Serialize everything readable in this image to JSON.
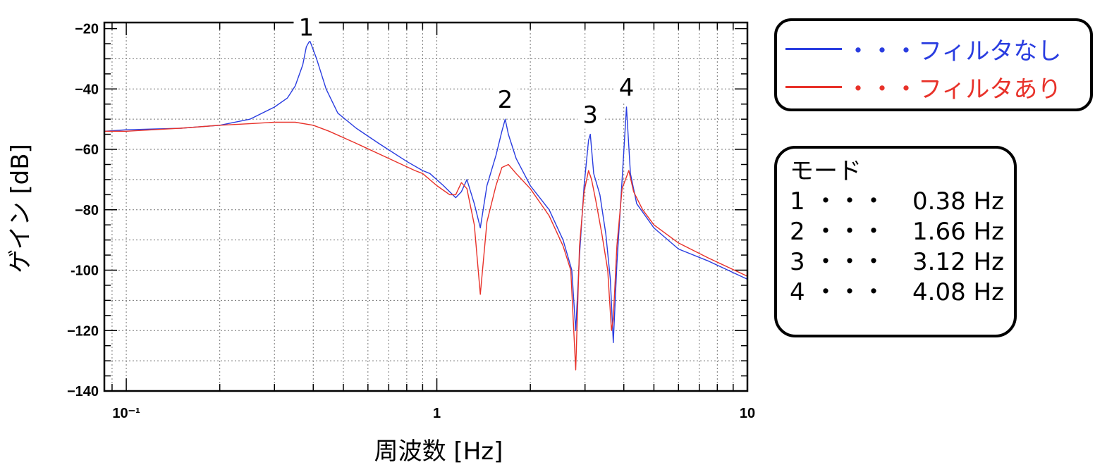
{
  "chart_data": {
    "type": "line",
    "title": "",
    "xlabel": "周波数 [Hz]",
    "ylabel": "ゲイン [dB]",
    "xscale": "log",
    "xlim": [
      0.085,
      10
    ],
    "ylim": [
      -140,
      -18
    ],
    "xticks": [
      {
        "value": 0.1,
        "label": "10⁻¹"
      },
      {
        "value": 1,
        "label": "1"
      },
      {
        "value": 10,
        "label": "10"
      }
    ],
    "yticks": [
      {
        "value": -20,
        "label": "−20"
      },
      {
        "value": -40,
        "label": "−40"
      },
      {
        "value": -60,
        "label": "−60"
      },
      {
        "value": -80,
        "label": "−80"
      },
      {
        "value": -100,
        "label": "-100"
      },
      {
        "value": -120,
        "label": "−120"
      },
      {
        "value": -140,
        "label": "−140"
      }
    ],
    "grid": true,
    "series": [
      {
        "name": "フィルタなし",
        "color": "#2a3de0",
        "x": [
          0.085,
          0.1,
          0.15,
          0.2,
          0.25,
          0.3,
          0.33,
          0.35,
          0.37,
          0.38,
          0.39,
          0.41,
          0.44,
          0.48,
          0.55,
          0.65,
          0.8,
          0.9,
          0.95,
          1.05,
          1.15,
          1.2,
          1.25,
          1.32,
          1.38,
          1.45,
          1.55,
          1.62,
          1.66,
          1.7,
          1.8,
          2.0,
          2.3,
          2.55,
          2.72,
          2.8,
          2.88,
          2.98,
          3.08,
          3.12,
          3.2,
          3.35,
          3.5,
          3.62,
          3.7,
          3.8,
          3.95,
          4.08,
          4.2,
          4.4,
          5.0,
          6.0,
          7.5,
          10
        ],
        "y": [
          -54,
          -53.5,
          -53,
          -52,
          -50,
          -46,
          -43,
          -39,
          -32,
          -26,
          -24,
          -30,
          -40,
          -48,
          -53,
          -58,
          -64,
          -67,
          -68,
          -72,
          -76,
          -74,
          -70,
          -78,
          -86,
          -72,
          -62,
          -54,
          -50,
          -55,
          -63,
          -72,
          -80,
          -90,
          -100,
          -120,
          -95,
          -72,
          -57,
          -55,
          -68,
          -75,
          -88,
          -103,
          -124,
          -98,
          -70,
          -46,
          -68,
          -78,
          -86,
          -93,
          -97,
          -103
        ]
      },
      {
        "name": "フィルタあり",
        "color": "#e8322a",
        "x": [
          0.085,
          0.1,
          0.15,
          0.2,
          0.25,
          0.3,
          0.35,
          0.4,
          0.45,
          0.55,
          0.7,
          0.85,
          0.9,
          1.0,
          1.1,
          1.15,
          1.2,
          1.25,
          1.32,
          1.38,
          1.45,
          1.55,
          1.62,
          1.7,
          1.8,
          2.0,
          2.3,
          2.55,
          2.7,
          2.8,
          2.88,
          2.98,
          3.08,
          3.15,
          3.25,
          3.4,
          3.55,
          3.65,
          3.7,
          3.8,
          3.95,
          4.15,
          4.3,
          4.6,
          5.0,
          6.0,
          7.5,
          10
        ],
        "y": [
          -54,
          -54,
          -53,
          -52,
          -51.5,
          -51,
          -51,
          -52,
          -54,
          -58,
          -63,
          -67,
          -68,
          -72,
          -75,
          -75,
          -71,
          -73,
          -85,
          -108,
          -84,
          -72,
          -66,
          -65,
          -68,
          -73,
          -82,
          -92,
          -100,
          -133,
          -92,
          -74,
          -67,
          -70,
          -77,
          -88,
          -100,
          -120,
          -116,
          -92,
          -73,
          -67,
          -74,
          -80,
          -85,
          -91,
          -96,
          -102
        ]
      }
    ],
    "annotations": [
      {
        "text": "1",
        "x": 0.38
      },
      {
        "text": "2",
        "x": 1.66
      },
      {
        "text": "3",
        "x": 3.12
      },
      {
        "text": "4",
        "x": 4.08
      }
    ]
  },
  "legend": {
    "dots": "・・・",
    "items": [
      {
        "label": "フィルタなし",
        "color": "#2a3de0"
      },
      {
        "label": "フィルタあり",
        "color": "#e8322a"
      }
    ]
  },
  "modes": {
    "title": "モード",
    "rows": [
      {
        "num": "1",
        "dots": "・・・",
        "value": "0.38 Hz"
      },
      {
        "num": "2",
        "dots": "・・・",
        "value": "1.66 Hz"
      },
      {
        "num": "3",
        "dots": "・・・",
        "value": "3.12 Hz"
      },
      {
        "num": "4",
        "dots": "・・・",
        "value": "4.08 Hz"
      }
    ]
  }
}
